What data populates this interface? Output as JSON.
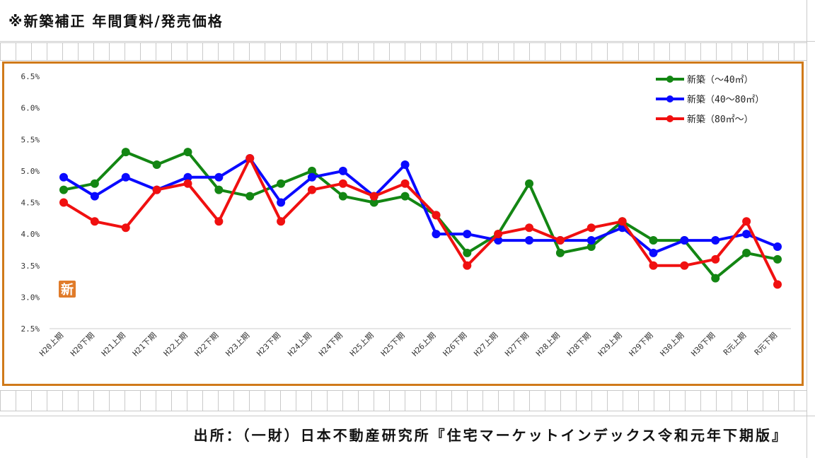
{
  "header": {
    "title": "※新築補正 年間賃料/発売価格"
  },
  "footer": {
    "source": "出所：（一財）日本不動産研究所『住宅マーケットインデックス令和元年下期版』"
  },
  "watermark": "新",
  "chart_data": {
    "type": "line",
    "categories": [
      "H20上期",
      "H20下期",
      "H21上期",
      "H21下期",
      "H22上期",
      "H22下期",
      "H23上期",
      "H23下期",
      "H24上期",
      "H24下期",
      "H25上期",
      "H25下期",
      "H26上期",
      "H26下期",
      "H27上期",
      "H27下期",
      "H28上期",
      "H28下期",
      "H29上期",
      "H29下期",
      "H30上期",
      "H30下期",
      "R元上期",
      "R元下期"
    ],
    "yticks": [
      "6.5%",
      "6.0%",
      "5.5%",
      "5.0%",
      "4.5%",
      "4.0%",
      "3.5%",
      "3.0%",
      "2.5%"
    ],
    "ylim": [
      2.5,
      6.5
    ],
    "series": [
      {
        "name": "新築（～40㎡）",
        "color": "#138613",
        "values": [
          4.7,
          4.8,
          5.3,
          5.1,
          5.3,
          4.7,
          4.6,
          4.8,
          5.0,
          4.6,
          4.5,
          4.6,
          4.3,
          3.7,
          4.0,
          4.8,
          3.7,
          3.8,
          4.2,
          3.9,
          3.9,
          3.3,
          3.7,
          3.6
        ]
      },
      {
        "name": "新築（40～80㎡）",
        "color": "#0a0aff",
        "values": [
          4.9,
          4.6,
          4.9,
          4.7,
          4.9,
          4.9,
          5.2,
          4.5,
          4.9,
          5.0,
          4.6,
          5.1,
          4.0,
          4.0,
          3.9,
          3.9,
          3.9,
          3.9,
          4.1,
          3.7,
          3.9,
          3.9,
          4.0,
          3.8
        ]
      },
      {
        "name": "新築（80㎡～）",
        "color": "#f01010",
        "values": [
          4.5,
          4.2,
          4.1,
          4.7,
          4.8,
          4.2,
          5.2,
          4.2,
          4.7,
          4.8,
          4.6,
          4.8,
          4.3,
          3.5,
          4.0,
          4.1,
          3.9,
          4.1,
          4.2,
          3.5,
          3.5,
          3.6,
          4.2,
          3.2
        ]
      }
    ],
    "legend_position": "top-right",
    "grid": false
  }
}
